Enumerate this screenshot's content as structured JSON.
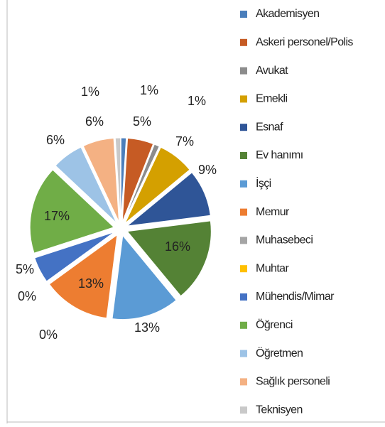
{
  "chart_data": {
    "type": "pie",
    "categories": [
      "Akademisyen",
      "Askeri personel/Polis",
      "Avukat",
      "Emekli",
      "Esnaf",
      "Ev hanımı",
      "İşçi",
      "Memur",
      "Muhasebeci",
      "Muhtar",
      "Mühendis/Mimar",
      "Öğrenci",
      "Öğretmen",
      "Sağlık personeli",
      "Teknisyen"
    ],
    "values": [
      1,
      5,
      1,
      7,
      9,
      16,
      13,
      13,
      0,
      0,
      5,
      17,
      6,
      6,
      1
    ],
    "value_labels": [
      "1%",
      "5%",
      "1%",
      "7%",
      "9%",
      "16%",
      "13%",
      "13%",
      "0%",
      "0%",
      "5%",
      "17%",
      "6%",
      "6%",
      "1%"
    ],
    "colors": [
      "#4a7ebb",
      "#c65b24",
      "#8c8c8c",
      "#d4a000",
      "#2f5597",
      "#548235",
      "#5b9bd5",
      "#ed7d31",
      "#a5a5a5",
      "#ffc000",
      "#4472c4",
      "#70ad47",
      "#9dc3e6",
      "#f4b183",
      "#c9c9c9"
    ],
    "legend": "right"
  }
}
